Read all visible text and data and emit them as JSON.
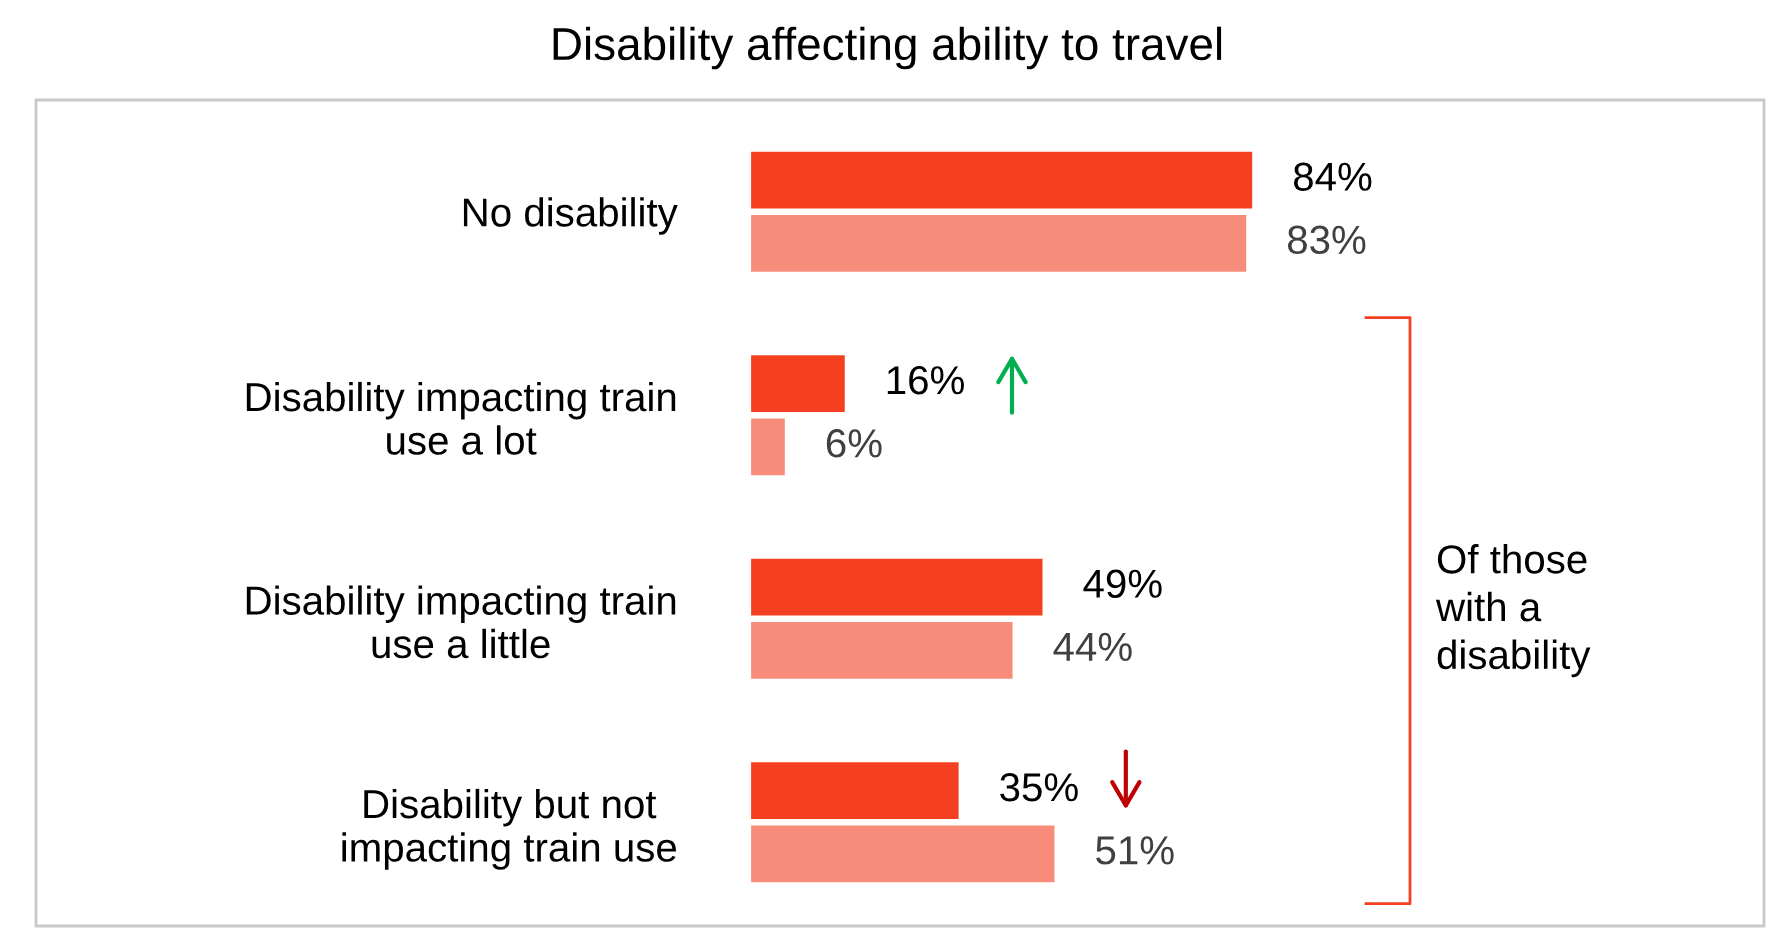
{
  "chart_data": {
    "type": "bar",
    "orientation": "horizontal",
    "title": "Disability affecting ability to travel",
    "categories": [
      "No disability",
      "Disability impacting train\nuse a lot",
      "Disability impacting train\nuse a little",
      "Disability but not\nimpacting train use"
    ],
    "series": [
      {
        "color": "#f44020",
        "values": [
          84,
          16,
          49,
          35
        ],
        "value_labels": [
          "84%",
          "16%",
          "49%",
          "35%"
        ]
      },
      {
        "color": "#f88c7a",
        "values": [
          83,
          6,
          44,
          51
        ],
        "value_labels": [
          "83%",
          "6%",
          "44%",
          "51%"
        ]
      }
    ],
    "annotations": [
      "Of those\nwith a\ndisability"
    ],
    "grid": false,
    "legend": false
  }
}
